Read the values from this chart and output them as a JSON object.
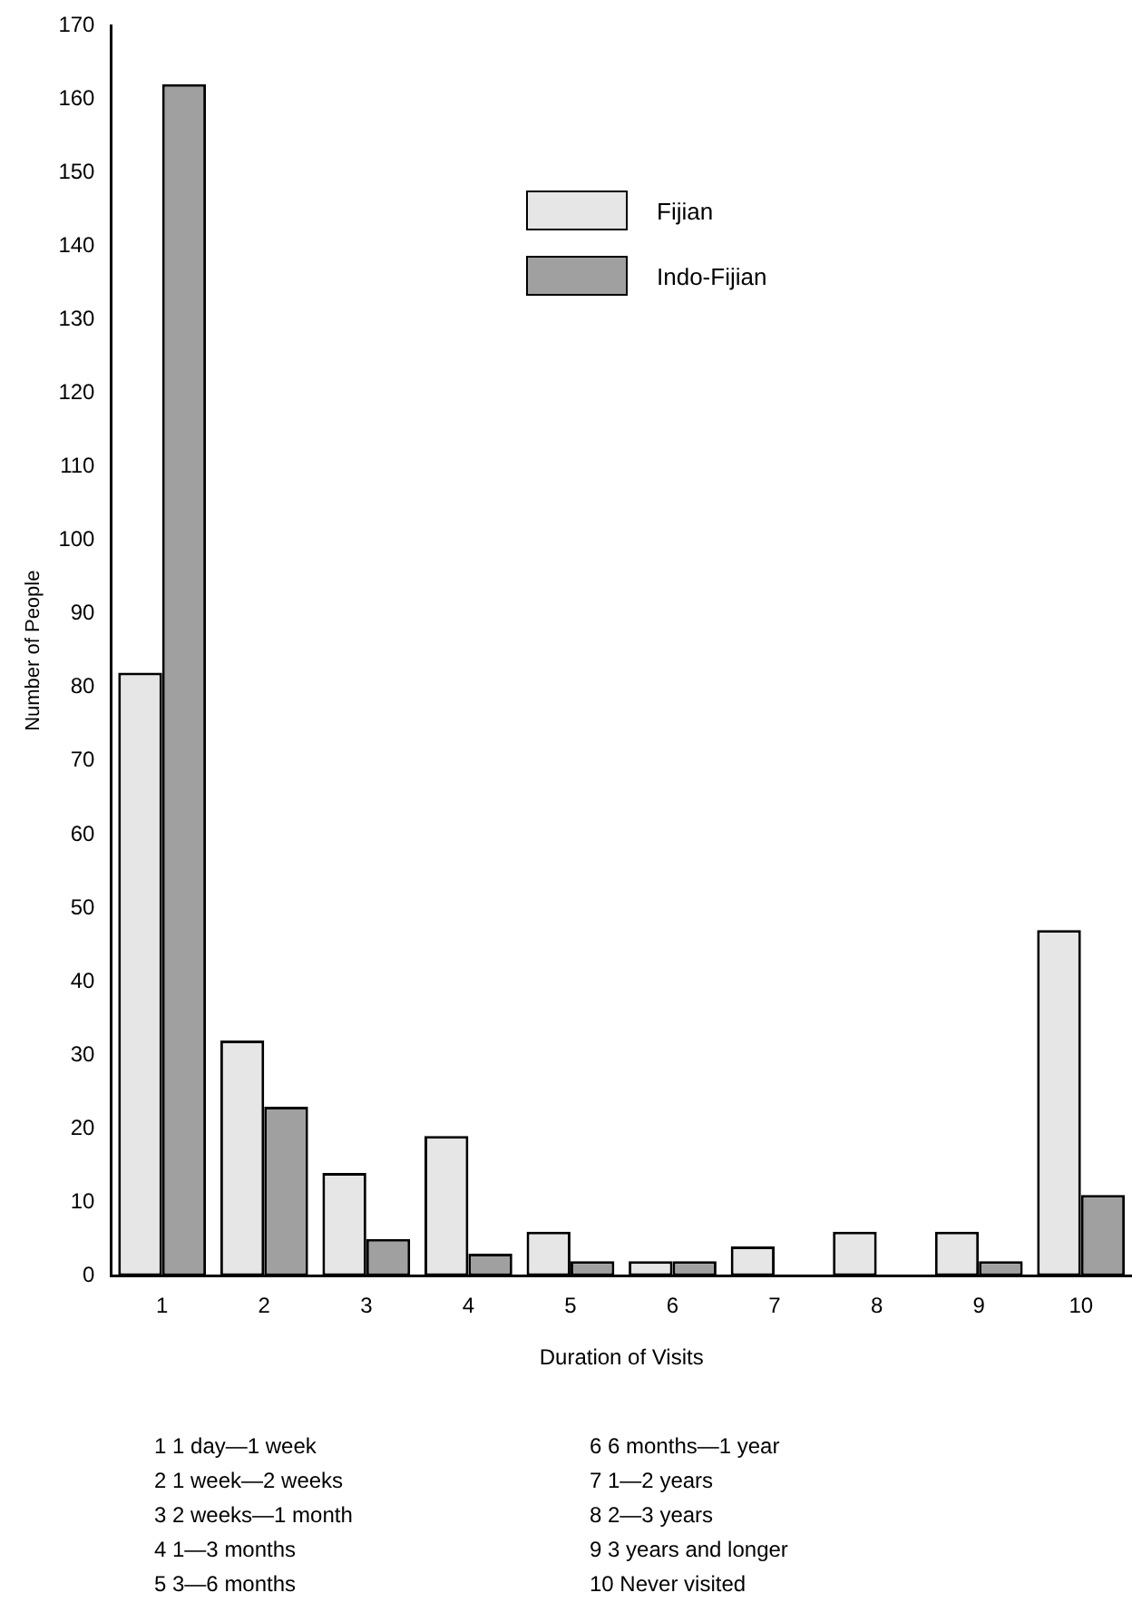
{
  "chart_data": {
    "type": "bar",
    "xlabel": "Duration of Visits",
    "ylabel": "Number of People",
    "categories": [
      "1",
      "2",
      "3",
      "4",
      "5",
      "6",
      "7",
      "8",
      "9",
      "10"
    ],
    "series": [
      {
        "name": "Fijian",
        "color": "#e6e6e6",
        "values": [
          82,
          32,
          14,
          19,
          6,
          2,
          4,
          6,
          6,
          47
        ]
      },
      {
        "name": "Indo-Fijian",
        "color": "#a0a0a0",
        "values": [
          162,
          23,
          5,
          3,
          2,
          2,
          0,
          0,
          2,
          11
        ]
      }
    ],
    "ylim": [
      0,
      170
    ],
    "yticks": [
      0,
      10,
      20,
      30,
      40,
      50,
      60,
      70,
      80,
      90,
      100,
      110,
      120,
      130,
      140,
      150,
      160,
      170
    ],
    "grid": false,
    "legend": "top right",
    "annotations": [
      "1  1 day—1 week",
      "2  1 week—2 weeks",
      "3  2 weeks—1 month",
      "4  1—3 months",
      "5  3—6 months",
      "6  6 months—1 year",
      "7  1—2 years",
      "8  2—3 years",
      "9  3 years and longer",
      "10  Never visited"
    ]
  }
}
